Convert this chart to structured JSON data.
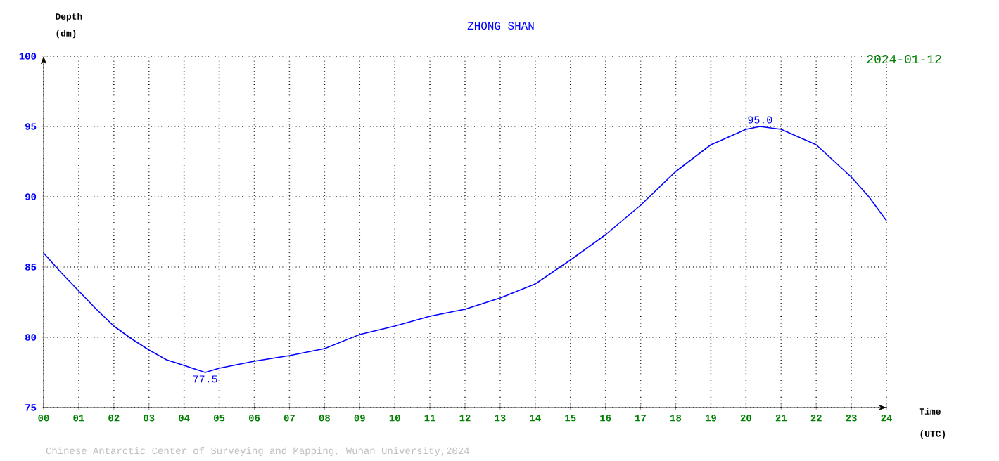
{
  "chart_data": {
    "type": "line",
    "title": "ZHONG SHAN",
    "subtitle": "2024-01-12",
    "xlabel": "Time (UTC)",
    "ylabel": "Depth (dm)",
    "x": [
      0,
      0.5,
      1,
      1.5,
      2,
      2.5,
      3,
      3.5,
      4,
      4.6,
      5,
      6,
      7,
      8,
      9,
      10,
      11,
      12,
      13,
      14,
      15,
      16,
      17,
      18,
      19,
      20,
      20.4,
      21,
      22,
      23,
      23.5,
      24
    ],
    "series": [
      {
        "color": "#0000ff",
        "values": [
          86.0,
          84.6,
          83.3,
          82.0,
          80.8,
          79.9,
          79.1,
          78.4,
          78.0,
          77.5,
          77.8,
          78.3,
          78.7,
          79.2,
          80.2,
          80.8,
          81.5,
          82.0,
          82.8,
          83.8,
          85.5,
          87.3,
          89.4,
          91.8,
          93.7,
          94.8,
          95.0,
          94.8,
          93.7,
          91.4,
          90.0,
          88.3
        ]
      }
    ],
    "xlim": [
      0,
      24
    ],
    "xticks": [
      {
        "value": 0,
        "label": "00"
      },
      {
        "value": 1,
        "label": "01"
      },
      {
        "value": 2,
        "label": "02"
      },
      {
        "value": 3,
        "label": "03"
      },
      {
        "value": 4,
        "label": "04"
      },
      {
        "value": 5,
        "label": "05"
      },
      {
        "value": 6,
        "label": "06"
      },
      {
        "value": 7,
        "label": "07"
      },
      {
        "value": 8,
        "label": "08"
      },
      {
        "value": 9,
        "label": "09"
      },
      {
        "value": 10,
        "label": "10"
      },
      {
        "value": 11,
        "label": "11"
      },
      {
        "value": 12,
        "label": "12"
      },
      {
        "value": 13,
        "label": "13"
      },
      {
        "value": 14,
        "label": "14"
      },
      {
        "value": 15,
        "label": "15"
      },
      {
        "value": 16,
        "label": "16"
      },
      {
        "value": 17,
        "label": "17"
      },
      {
        "value": 18,
        "label": "18"
      },
      {
        "value": 19,
        "label": "19"
      },
      {
        "value": 20,
        "label": "20"
      },
      {
        "value": 21,
        "label": "21"
      },
      {
        "value": 22,
        "label": "22"
      },
      {
        "value": 23,
        "label": "23"
      },
      {
        "value": 24,
        "label": "24"
      }
    ],
    "ylim": [
      75,
      100
    ],
    "yticks": [
      75,
      80,
      85,
      90,
      95,
      100
    ],
    "grid": true,
    "line_style": "solid",
    "marker": "none",
    "annotations": [
      {
        "text": "77.5",
        "x": 4.6,
        "y": 77.5
      },
      {
        "text": "95.0",
        "x": 20.4,
        "y": 95.0
      },
      "Chinese Antarctic Center of Surveying and Mapping, Wuhan University,2024"
    ]
  }
}
